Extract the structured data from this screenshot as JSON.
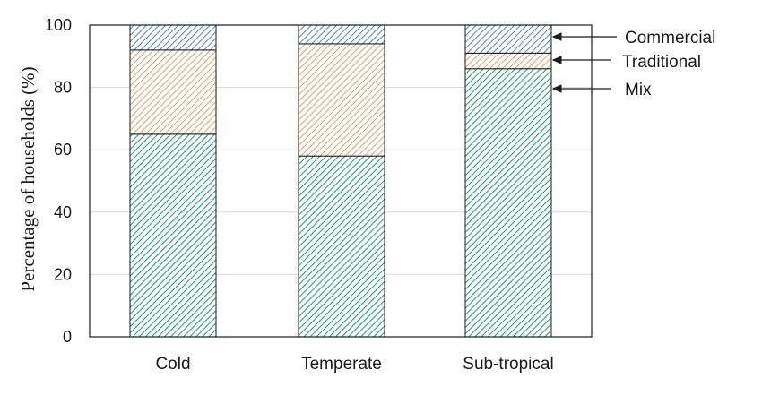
{
  "chart_data": {
    "type": "bar",
    "stacked": true,
    "categories": [
      "Cold",
      "Temperate",
      "Sub-tropical"
    ],
    "series": [
      {
        "name": "Mix",
        "values": [
          65,
          58,
          86
        ],
        "color": "#1a9b6c",
        "pattern": "diagonal-hatch"
      },
      {
        "name": "Traditional",
        "values": [
          27,
          36,
          5
        ],
        "color": "#d9a36a",
        "pattern": "diagonal-hatch"
      },
      {
        "name": "Commercial",
        "values": [
          8,
          6,
          9
        ],
        "color": "#4f86b8",
        "pattern": "diagonal-hatch"
      }
    ],
    "ylabel": "Percentage of households (%)",
    "xlabel": "",
    "ylim": [
      0,
      100
    ],
    "yticks": [
      0,
      20,
      40,
      60,
      80,
      100
    ],
    "grid": true,
    "legend": "right, arrow-annotated"
  }
}
